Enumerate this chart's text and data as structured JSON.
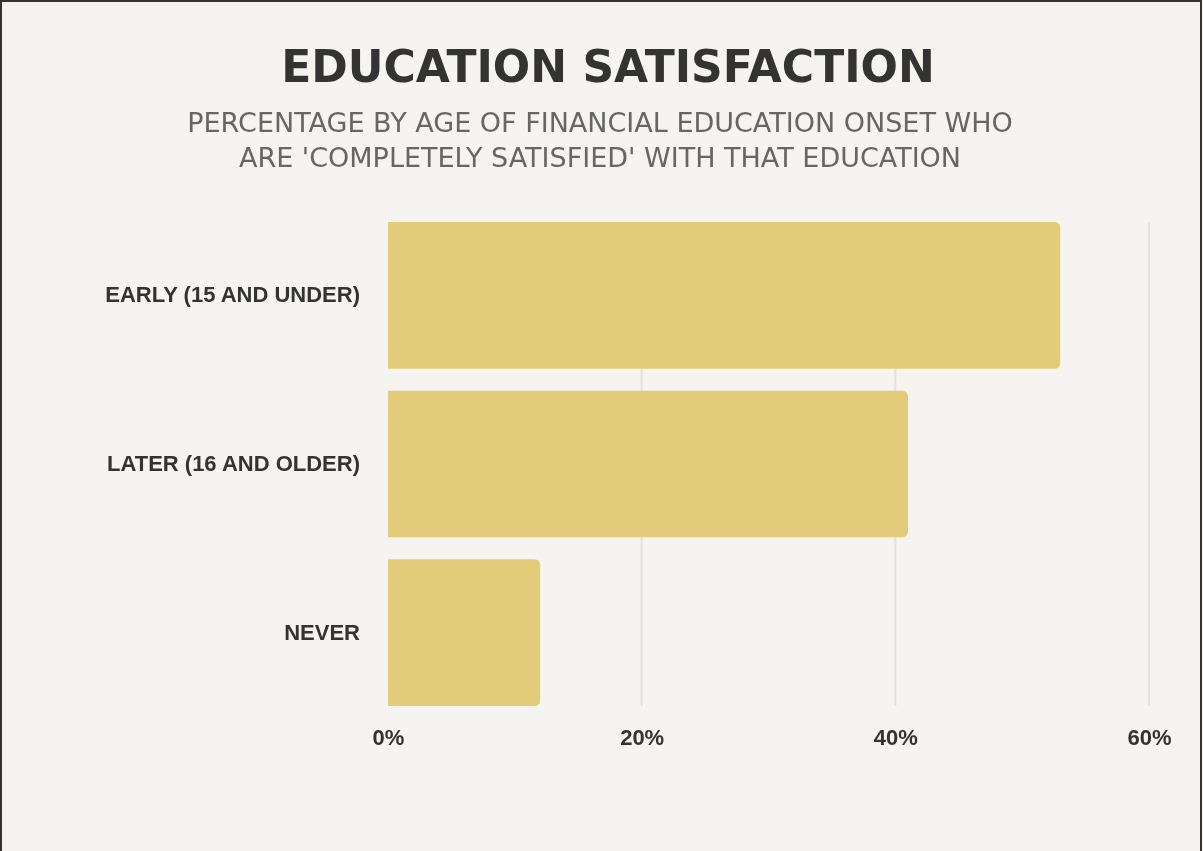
{
  "chart_data": {
    "type": "bar",
    "orientation": "horizontal",
    "title": "EDUCATION SATISFACTION",
    "subtitle": "PERCENTAGE BY AGE OF FINANCIAL EDUCATION ONSET WHO ARE 'COMPLETELY SATISFIED' WITH THAT EDUCATION",
    "categories": [
      "EARLY (15 AND UNDER)",
      "LATER (16 AND OLDER)",
      "NEVER"
    ],
    "values": [
      53,
      41,
      12
    ],
    "color": "#e3cc79",
    "xlim": [
      0,
      60
    ],
    "xticks": [
      {
        "value": 0,
        "label": "0%"
      },
      {
        "value": 20,
        "label": "20%"
      },
      {
        "value": 40,
        "label": "40%"
      },
      {
        "value": 60,
        "label": "60%"
      }
    ],
    "grid": "x"
  }
}
